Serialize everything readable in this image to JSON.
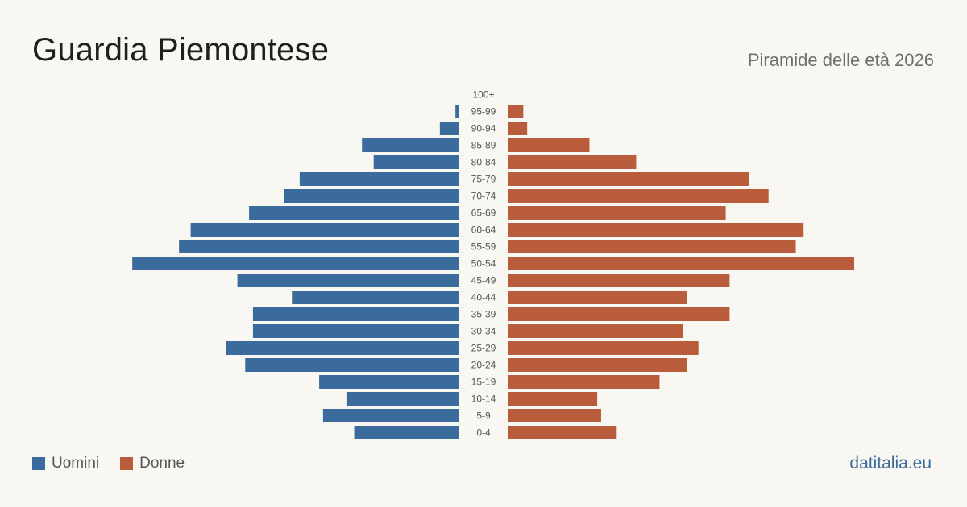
{
  "title": "Guardia Piemontese",
  "subtitle": "Piramide delle età 2026",
  "source": "datitalia.eu",
  "colors": {
    "men": "#3b6a9c",
    "women": "#b95c3b",
    "background": "#f9f7f2",
    "age_label": "#555555"
  },
  "legend": {
    "men": "Uomini",
    "women": "Donne"
  },
  "chart_data": {
    "type": "bar",
    "orientation": "horizontal-pyramid",
    "categories": [
      "100+",
      "95-99",
      "90-94",
      "85-89",
      "80-84",
      "75-79",
      "70-74",
      "65-69",
      "60-64",
      "55-59",
      "50-54",
      "45-49",
      "40-44",
      "35-39",
      "30-34",
      "25-29",
      "20-24",
      "15-19",
      "10-14",
      "5-9",
      "0-4"
    ],
    "series": [
      {
        "name": "Uomini",
        "values": [
          0,
          1,
          5,
          25,
          22,
          41,
          45,
          54,
          69,
          72,
          84,
          57,
          43,
          53,
          53,
          60,
          55,
          36,
          29,
          35,
          27
        ]
      },
      {
        "name": "Donne",
        "values": [
          0,
          4,
          5,
          21,
          33,
          62,
          67,
          56,
          76,
          74,
          89,
          57,
          46,
          57,
          45,
          49,
          46,
          39,
          23,
          24,
          28
        ]
      }
    ]
  }
}
